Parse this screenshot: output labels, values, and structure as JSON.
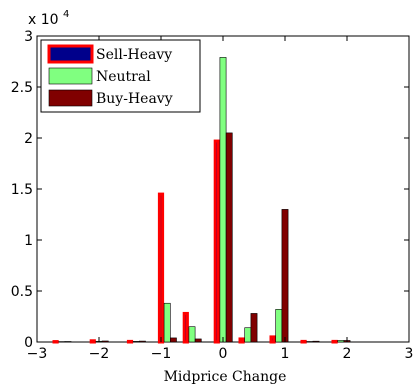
{
  "chart_data": {
    "type": "bar",
    "xlabel": "Midprice Change",
    "ylabel": "",
    "exponent_label": "x 10",
    "exponent_power": "4",
    "xlim": [
      -3,
      3
    ],
    "ylim": [
      0,
      30000
    ],
    "xticks": [
      "−3",
      "−2",
      "−1",
      "0",
      "1",
      "2",
      "3"
    ],
    "yticks": [
      "0",
      "0.5",
      "1",
      "1.5",
      "2",
      "2.5",
      "3"
    ],
    "x": [
      -2.6,
      -2.0,
      -1.4,
      -0.9,
      -0.5,
      0,
      0.4,
      0.9,
      1.4,
      1.9
    ],
    "legend_position": "top-left",
    "series": [
      {
        "name": "Sell-Heavy",
        "color": "#00008B",
        "edge_color": "#FF0000",
        "values": [
          40,
          120,
          60,
          14500,
          2800,
          19700,
          300,
          500,
          60,
          60
        ]
      },
      {
        "name": "Neutral",
        "color": "#80FF80",
        "edge_color": "#000000",
        "values": [
          40,
          70,
          60,
          3800,
          1500,
          27900,
          1400,
          3200,
          50,
          150
        ]
      },
      {
        "name": "Buy-Heavy",
        "color": "#800000",
        "edge_color": "#000000",
        "values": [
          50,
          100,
          90,
          400,
          300,
          20500,
          2800,
          13000,
          80,
          150
        ]
      }
    ]
  }
}
